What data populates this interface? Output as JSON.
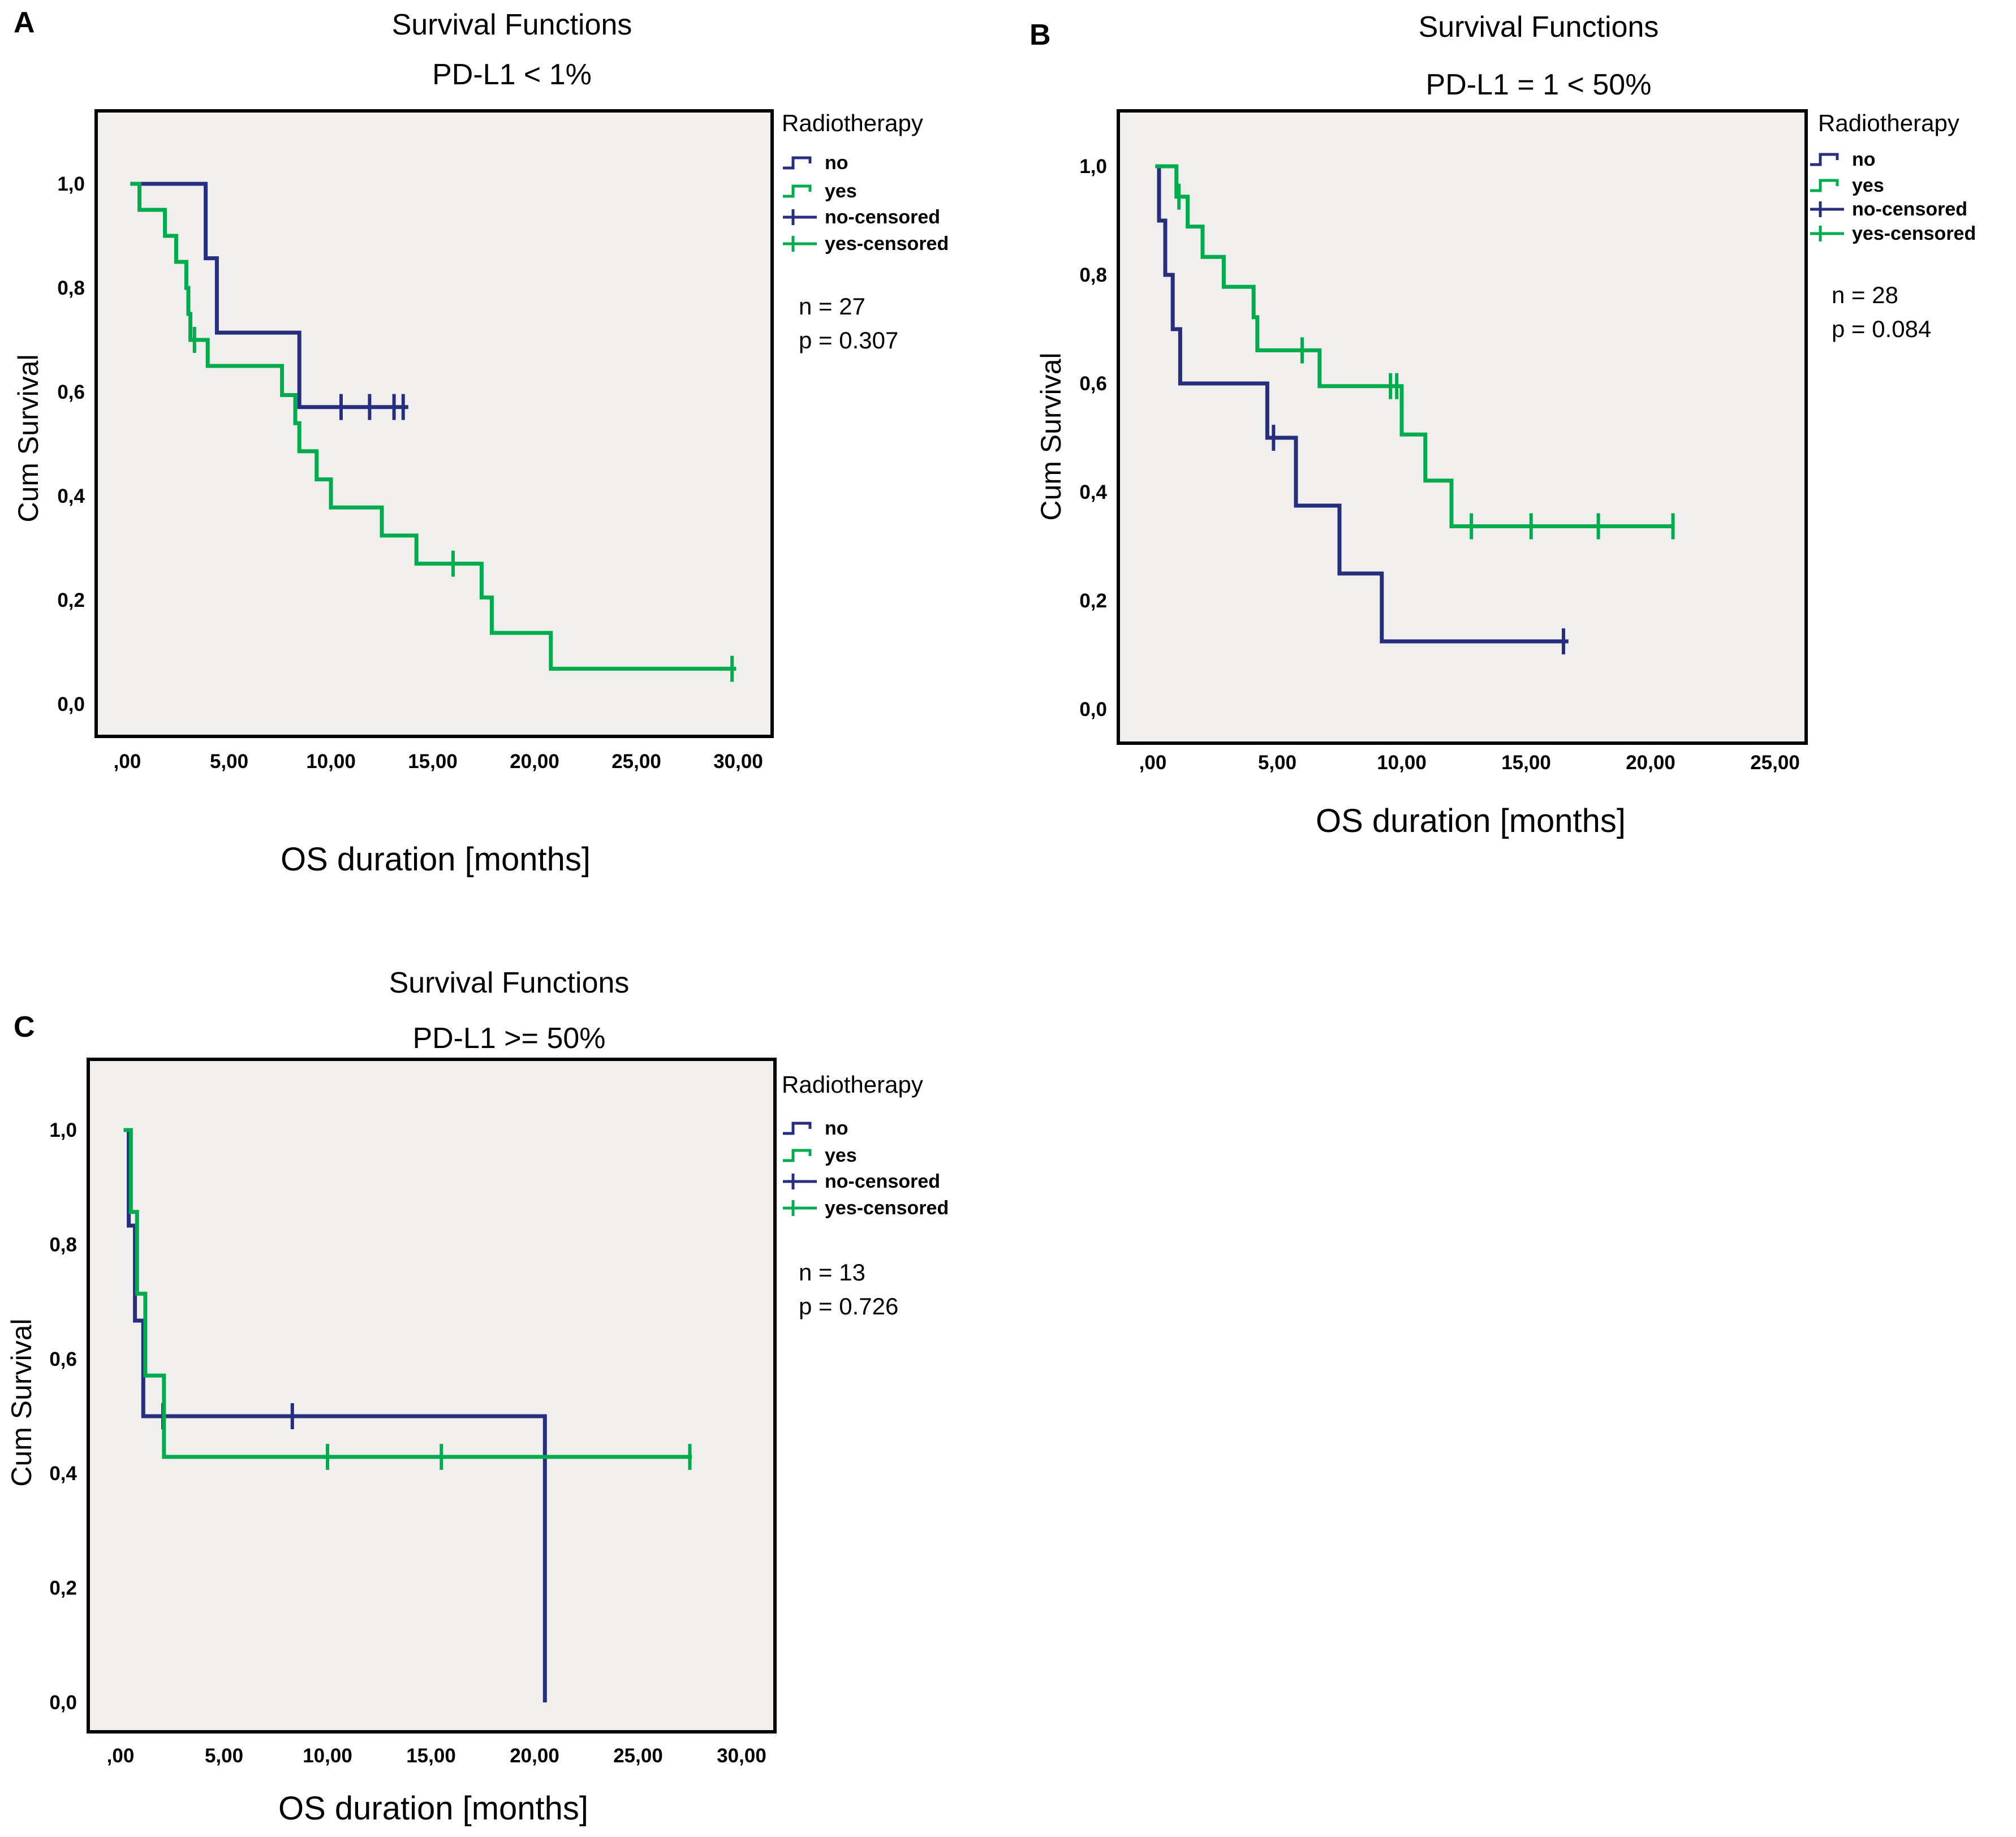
{
  "figure": {
    "colors": {
      "no": "#272e7d",
      "yes": "#00ab4e",
      "plot_background": "#f0efee",
      "frame_border": "#000000"
    }
  },
  "chart_data": [
    {
      "type": "line",
      "panel_label": "A",
      "title": "Survival Functions",
      "subtitle": "PD-L1 < 1%",
      "xlabel": "OS duration [months]",
      "ylabel": "Cum Survival",
      "legend_title": "Radiotherapy",
      "legend_items": [
        "no",
        "yes",
        "no-censored",
        "yes-censored"
      ],
      "stats": {
        "n": "n = 27",
        "p": "p = 0.307"
      },
      "xlim": [
        0,
        30
      ],
      "ylim": [
        0.0,
        1.0
      ],
      "x_ticks": [
        {
          "m": 0,
          "label": ",00"
        },
        {
          "m": 5,
          "label": "5,00"
        },
        {
          "m": 10,
          "label": "10,00"
        },
        {
          "m": 15,
          "label": "15,00"
        },
        {
          "m": 20,
          "label": "20,00"
        },
        {
          "m": 25,
          "label": "25,00"
        },
        {
          "m": 30,
          "label": "30,00"
        }
      ],
      "y_ticks": [
        {
          "v": 1.0,
          "label": "1,0"
        },
        {
          "v": 0.8,
          "label": "0,8"
        },
        {
          "v": 0.6,
          "label": "0,6"
        },
        {
          "v": 0.4,
          "label": "0,4"
        },
        {
          "v": 0.2,
          "label": "0,2"
        },
        {
          "v": 0.0,
          "label": "0,0"
        }
      ],
      "series": [
        {
          "name": "no",
          "color_key": "no",
          "points": [
            [
              0.15,
              1.0
            ],
            [
              3.85,
              1.0
            ],
            [
              3.85,
              0.857
            ],
            [
              4.4,
              0.857
            ],
            [
              4.4,
              0.714
            ],
            [
              8.45,
              0.714
            ],
            [
              8.45,
              0.571
            ],
            [
              13.8,
              0.571
            ]
          ],
          "censors": [
            [
              10.5,
              0.571
            ],
            [
              11.9,
              0.571
            ],
            [
              13.1,
              0.571
            ],
            [
              13.55,
              0.571
            ]
          ]
        },
        {
          "name": "yes",
          "color_key": "yes",
          "points": [
            [
              0.15,
              1.0
            ],
            [
              0.6,
              1.0
            ],
            [
              0.6,
              0.95
            ],
            [
              1.85,
              0.95
            ],
            [
              1.85,
              0.9
            ],
            [
              2.4,
              0.9
            ],
            [
              2.4,
              0.85
            ],
            [
              2.9,
              0.85
            ],
            [
              2.9,
              0.8
            ],
            [
              3.0,
              0.8
            ],
            [
              3.0,
              0.75
            ],
            [
              3.1,
              0.75
            ],
            [
              3.1,
              0.7
            ],
            [
              3.95,
              0.7
            ],
            [
              3.95,
              0.65
            ],
            [
              7.6,
              0.65
            ],
            [
              7.6,
              0.594
            ],
            [
              8.25,
              0.594
            ],
            [
              8.25,
              0.54
            ],
            [
              8.45,
              0.54
            ],
            [
              8.45,
              0.486
            ],
            [
              9.3,
              0.486
            ],
            [
              9.3,
              0.432
            ],
            [
              10.0,
              0.432
            ],
            [
              10.0,
              0.378
            ],
            [
              12.5,
              0.378
            ],
            [
              12.5,
              0.324
            ],
            [
              14.2,
              0.324
            ],
            [
              14.2,
              0.27
            ],
            [
              17.4,
              0.27
            ],
            [
              17.4,
              0.205
            ],
            [
              17.9,
              0.205
            ],
            [
              17.9,
              0.137
            ],
            [
              20.8,
              0.137
            ],
            [
              20.8,
              0.068
            ],
            [
              29.9,
              0.068
            ]
          ],
          "censors": [
            [
              3.3,
              0.7
            ],
            [
              16.0,
              0.27
            ],
            [
              29.7,
              0.068
            ]
          ]
        }
      ]
    },
    {
      "type": "line",
      "panel_label": "B",
      "title": "Survival Functions",
      "subtitle": "PD-L1 = 1 < 50%",
      "xlabel": "OS duration [months]",
      "ylabel": "Cum Survival",
      "legend_title": "Radiotherapy",
      "legend_items": [
        "no",
        "yes",
        "no-censored",
        "yes-censored"
      ],
      "stats": {
        "n": "n = 28",
        "p": "p = 0.084"
      },
      "xlim": [
        0,
        25
      ],
      "ylim": [
        0.0,
        1.0
      ],
      "x_ticks": [
        {
          "m": 0,
          "label": ",00"
        },
        {
          "m": 5,
          "label": "5,00"
        },
        {
          "m": 10,
          "label": "10,00"
        },
        {
          "m": 15,
          "label": "15,00"
        },
        {
          "m": 20,
          "label": "20,00"
        },
        {
          "m": 25,
          "label": "25,00"
        }
      ],
      "y_ticks": [
        {
          "v": 1.0,
          "label": "1,0"
        },
        {
          "v": 0.8,
          "label": "0,8"
        },
        {
          "v": 0.6,
          "label": "0,6"
        },
        {
          "v": 0.4,
          "label": "0,4"
        },
        {
          "v": 0.2,
          "label": "0,2"
        },
        {
          "v": 0.0,
          "label": "0,0"
        }
      ],
      "series": [
        {
          "name": "no",
          "color_key": "no",
          "points": [
            [
              0.1,
              1.0
            ],
            [
              0.25,
              1.0
            ],
            [
              0.25,
              0.9
            ],
            [
              0.5,
              0.9
            ],
            [
              0.5,
              0.8
            ],
            [
              0.8,
              0.8
            ],
            [
              0.8,
              0.7
            ],
            [
              1.1,
              0.7
            ],
            [
              1.1,
              0.6
            ],
            [
              4.6,
              0.6
            ],
            [
              4.6,
              0.5
            ],
            [
              5.75,
              0.5
            ],
            [
              5.75,
              0.375
            ],
            [
              7.5,
              0.375
            ],
            [
              7.5,
              0.25
            ],
            [
              9.2,
              0.25
            ],
            [
              9.2,
              0.125
            ],
            [
              16.7,
              0.125
            ]
          ],
          "censors": [
            [
              4.85,
              0.5
            ],
            [
              16.5,
              0.125
            ]
          ]
        },
        {
          "name": "yes",
          "color_key": "yes",
          "points": [
            [
              0.1,
              1.0
            ],
            [
              0.95,
              1.0
            ],
            [
              0.95,
              0.944
            ],
            [
              1.4,
              0.944
            ],
            [
              1.4,
              0.889
            ],
            [
              2.0,
              0.889
            ],
            [
              2.0,
              0.833
            ],
            [
              2.85,
              0.833
            ],
            [
              2.85,
              0.778
            ],
            [
              4.05,
              0.778
            ],
            [
              4.05,
              0.722
            ],
            [
              4.2,
              0.722
            ],
            [
              4.2,
              0.661
            ],
            [
              6.7,
              0.661
            ],
            [
              6.7,
              0.595
            ],
            [
              10.0,
              0.595
            ],
            [
              10.0,
              0.506
            ],
            [
              10.95,
              0.506
            ],
            [
              10.95,
              0.421
            ],
            [
              12.0,
              0.421
            ],
            [
              12.0,
              0.337
            ],
            [
              20.95,
              0.337
            ]
          ],
          "censors": [
            [
              1.05,
              0.944
            ],
            [
              6.0,
              0.661
            ],
            [
              9.55,
              0.595
            ],
            [
              9.8,
              0.595
            ],
            [
              12.8,
              0.337
            ],
            [
              15.2,
              0.337
            ],
            [
              17.9,
              0.337
            ],
            [
              20.9,
              0.337
            ]
          ]
        }
      ]
    },
    {
      "type": "line",
      "panel_label": "C",
      "title": "Survival Functions",
      "subtitle": "PD-L1 >= 50%",
      "xlabel": "OS duration [months]",
      "ylabel": "Cum Survival",
      "legend_title": "Radiotherapy",
      "legend_items": [
        "no",
        "yes",
        "no-censored",
        "yes-censored"
      ],
      "stats": {
        "n": "n = 13",
        "p": "p = 0.726"
      },
      "xlim": [
        0,
        30
      ],
      "ylim": [
        0.0,
        1.0
      ],
      "x_ticks": [
        {
          "m": 0,
          "label": ",00"
        },
        {
          "m": 5,
          "label": "5,00"
        },
        {
          "m": 10,
          "label": "10,00"
        },
        {
          "m": 15,
          "label": "15,00"
        },
        {
          "m": 20,
          "label": "20,00"
        },
        {
          "m": 25,
          "label": "25,00"
        },
        {
          "m": 30,
          "label": "30,00"
        }
      ],
      "y_ticks": [
        {
          "v": 1.0,
          "label": "1,0"
        },
        {
          "v": 0.8,
          "label": "0,8"
        },
        {
          "v": 0.6,
          "label": "0,6"
        },
        {
          "v": 0.4,
          "label": "0,4"
        },
        {
          "v": 0.2,
          "label": "0,2"
        },
        {
          "v": 0.0,
          "label": "0,0"
        }
      ],
      "series": [
        {
          "name": "no",
          "color_key": "no",
          "points": [
            [
              0.2,
              1.0
            ],
            [
              0.4,
              1.0
            ],
            [
              0.4,
              0.833
            ],
            [
              0.7,
              0.833
            ],
            [
              0.7,
              0.667
            ],
            [
              1.1,
              0.667
            ],
            [
              1.1,
              0.5
            ],
            [
              20.5,
              0.5
            ],
            [
              20.5,
              0.0
            ]
          ],
          "censors": [
            [
              2.05,
              0.5
            ],
            [
              8.3,
              0.5
            ]
          ]
        },
        {
          "name": "yes",
          "color_key": "yes",
          "points": [
            [
              0.15,
              1.0
            ],
            [
              0.5,
              1.0
            ],
            [
              0.5,
              0.857
            ],
            [
              0.8,
              0.857
            ],
            [
              0.8,
              0.714
            ],
            [
              1.2,
              0.714
            ],
            [
              1.2,
              0.571
            ],
            [
              2.1,
              0.571
            ],
            [
              2.1,
              0.429
            ],
            [
              27.6,
              0.429
            ]
          ],
          "censors": [
            [
              10.0,
              0.429
            ],
            [
              15.5,
              0.429
            ],
            [
              27.5,
              0.429
            ]
          ]
        }
      ]
    }
  ]
}
